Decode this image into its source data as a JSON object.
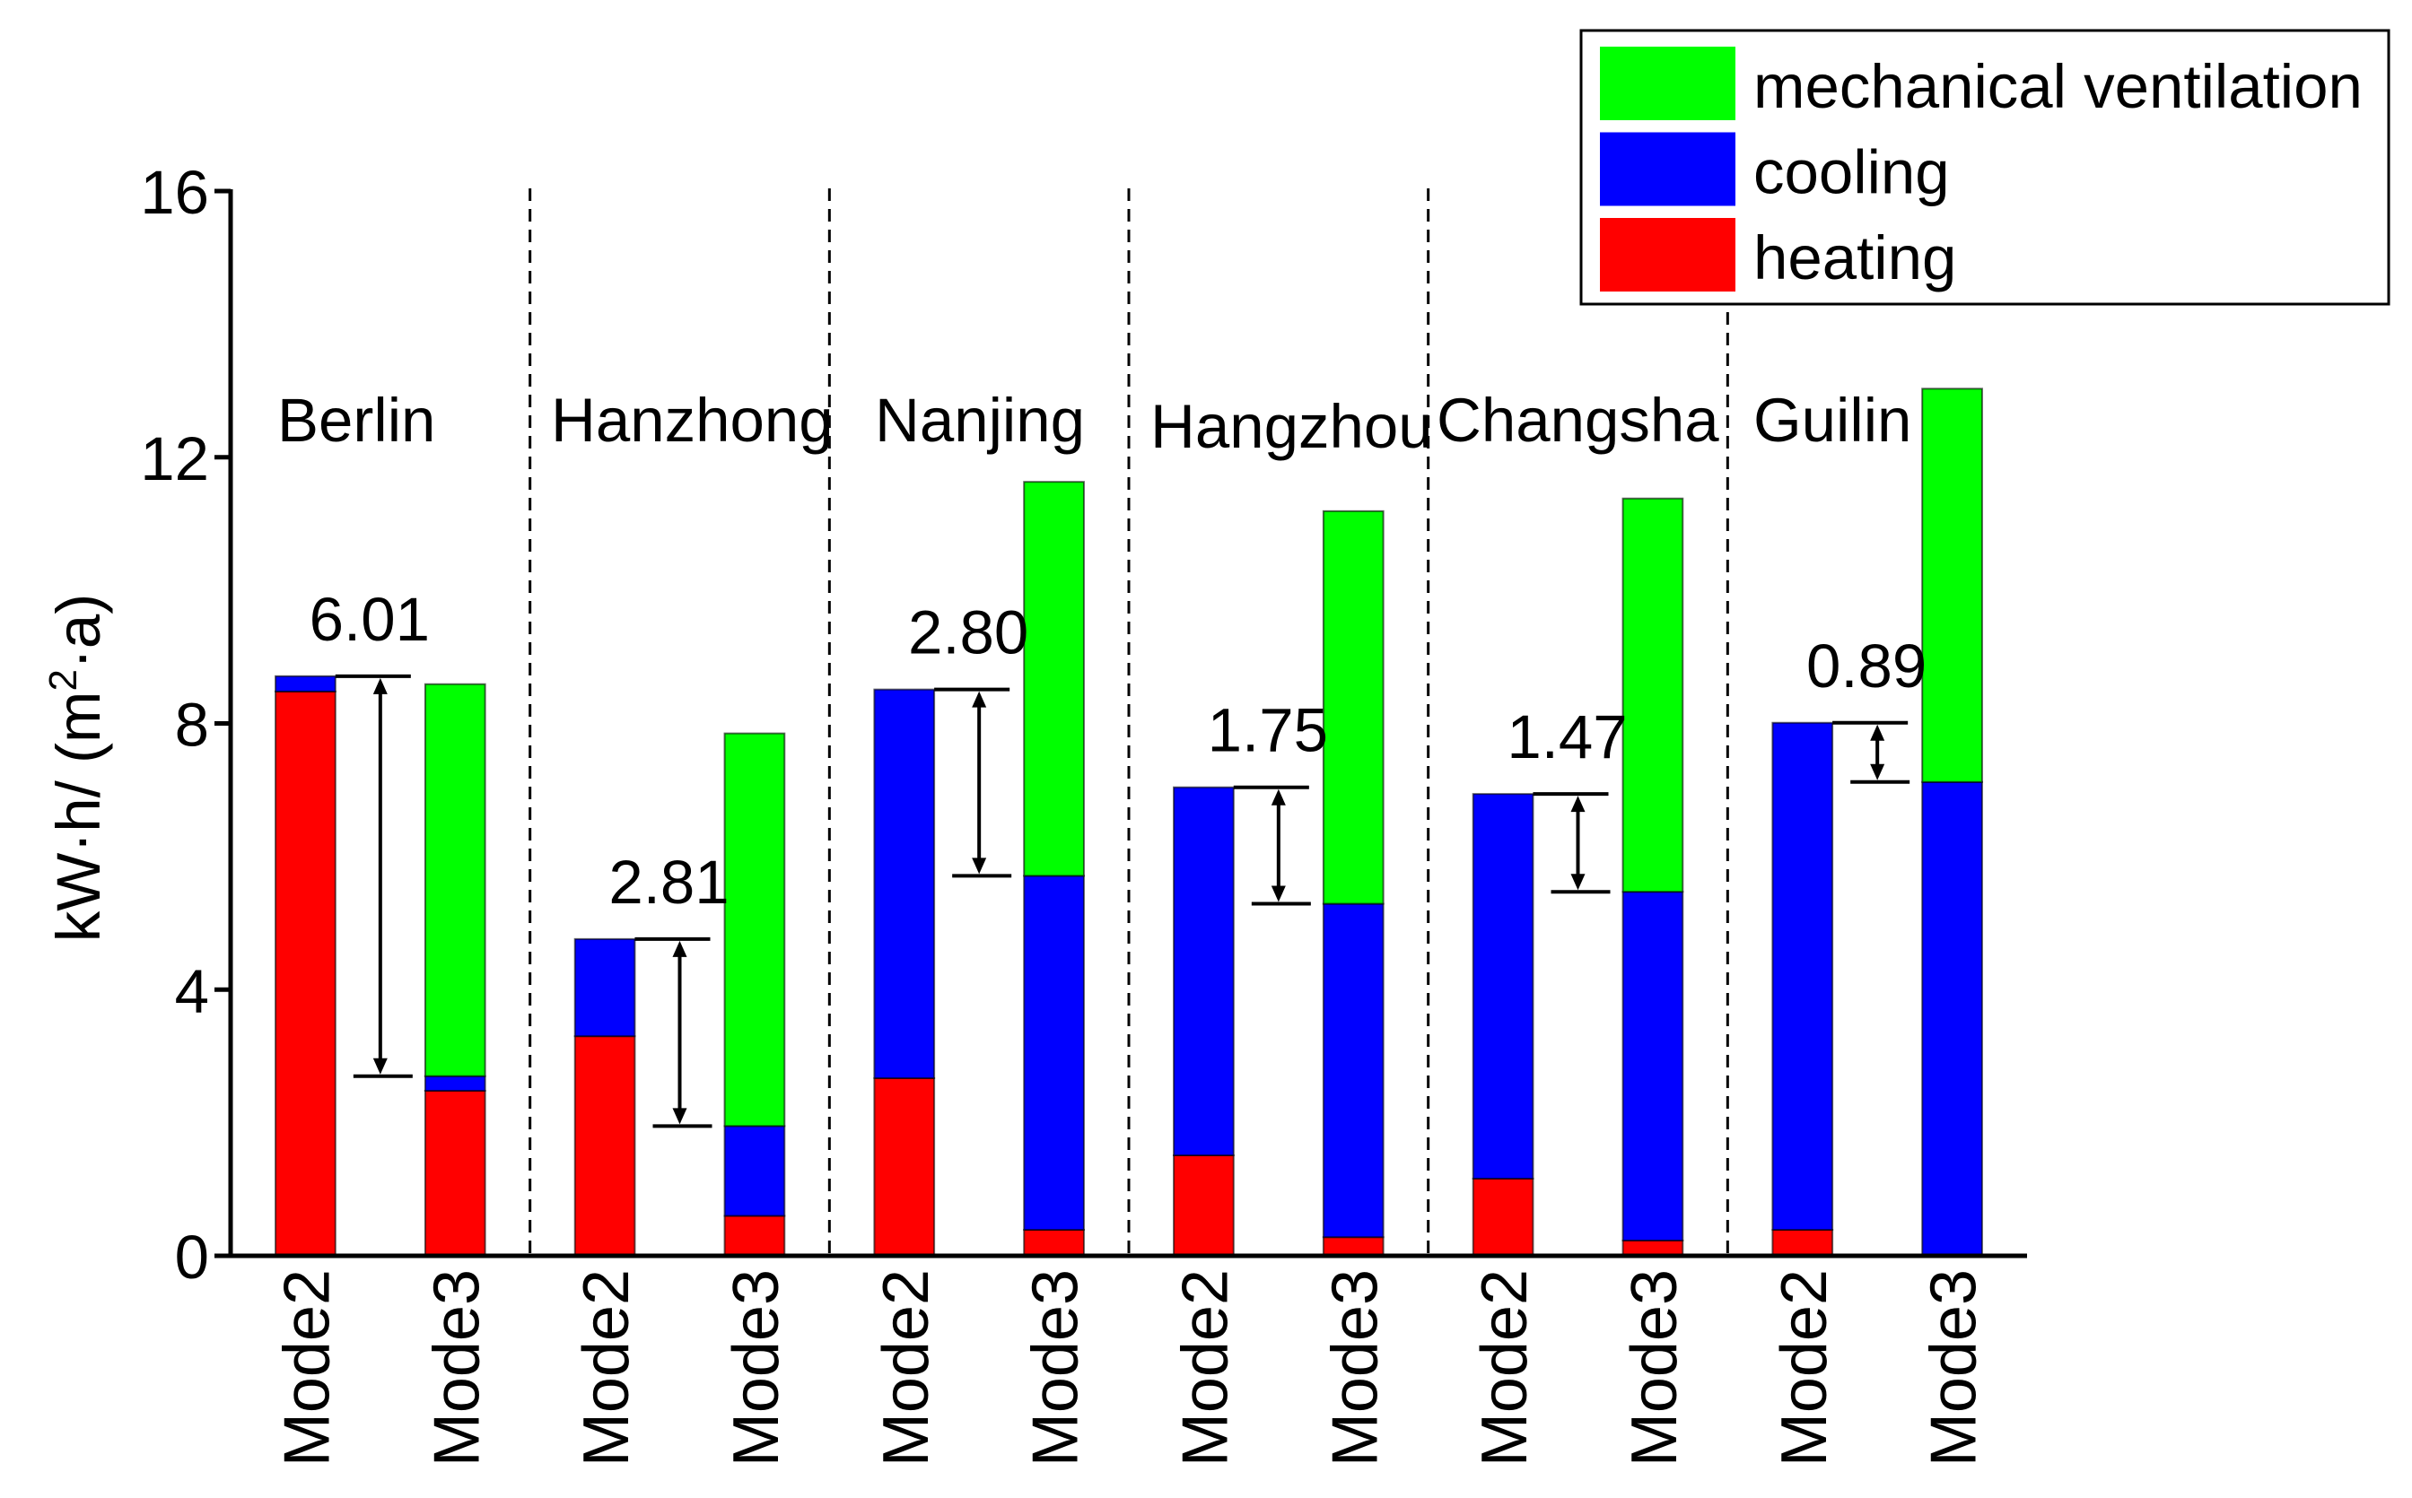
{
  "chart_data": {
    "type": "bar",
    "stacked": true,
    "title": "",
    "xlabel": "",
    "ylabel": {
      "main": "kW·h/ (m",
      "sup": "2",
      "rest": "·a)"
    },
    "ylim": [
      0,
      16
    ],
    "yticks": [
      0,
      4,
      8,
      12,
      16
    ],
    "grid": false,
    "groups": [
      "Berlin",
      "Hanzhong",
      "Nanjing",
      "Hangzhou",
      "Changsha",
      "Guilin"
    ],
    "bars_per_group": [
      "Mode2",
      "Mode3"
    ],
    "series": [
      {
        "name": "heating",
        "color": "#ff0000",
        "values": [
          [
            8.48,
            2.48
          ],
          [
            3.3,
            0.6
          ],
          [
            2.67,
            0.39
          ],
          [
            1.51,
            0.28
          ],
          [
            1.16,
            0.23
          ],
          [
            0.39,
            0.0
          ]
        ]
      },
      {
        "name": "cooling",
        "color": "#0000ff",
        "values": [
          [
            0.23,
            0.22
          ],
          [
            1.46,
            1.35
          ],
          [
            5.84,
            5.32
          ],
          [
            5.53,
            5.01
          ],
          [
            5.78,
            5.24
          ],
          [
            7.62,
            7.12
          ]
        ]
      },
      {
        "name": "mechanical ventilation",
        "color": "#00ff00",
        "values": [
          [
            0,
            5.89
          ],
          [
            0,
            5.9
          ],
          [
            0,
            5.92
          ],
          [
            0,
            5.9
          ],
          [
            0,
            5.91
          ],
          [
            0,
            5.91
          ]
        ]
      }
    ],
    "legend": {
      "placement": "top-right",
      "order": [
        2,
        1,
        0
      ]
    },
    "annotations": [
      {
        "group": 0,
        "label": "6.01",
        "from": 8.71,
        "to": 2.7
      },
      {
        "group": 1,
        "label": "2.81",
        "from": 4.76,
        "to": 1.95
      },
      {
        "group": 2,
        "label": "2.80",
        "from": 8.51,
        "to": 5.71
      },
      {
        "group": 3,
        "label": "1.75",
        "from": 7.04,
        "to": 5.29
      },
      {
        "group": 4,
        "label": "1.47",
        "from": 6.94,
        "to": 5.47
      },
      {
        "group": 5,
        "label": "0.89",
        "from": 8.01,
        "to": 7.12
      }
    ]
  }
}
